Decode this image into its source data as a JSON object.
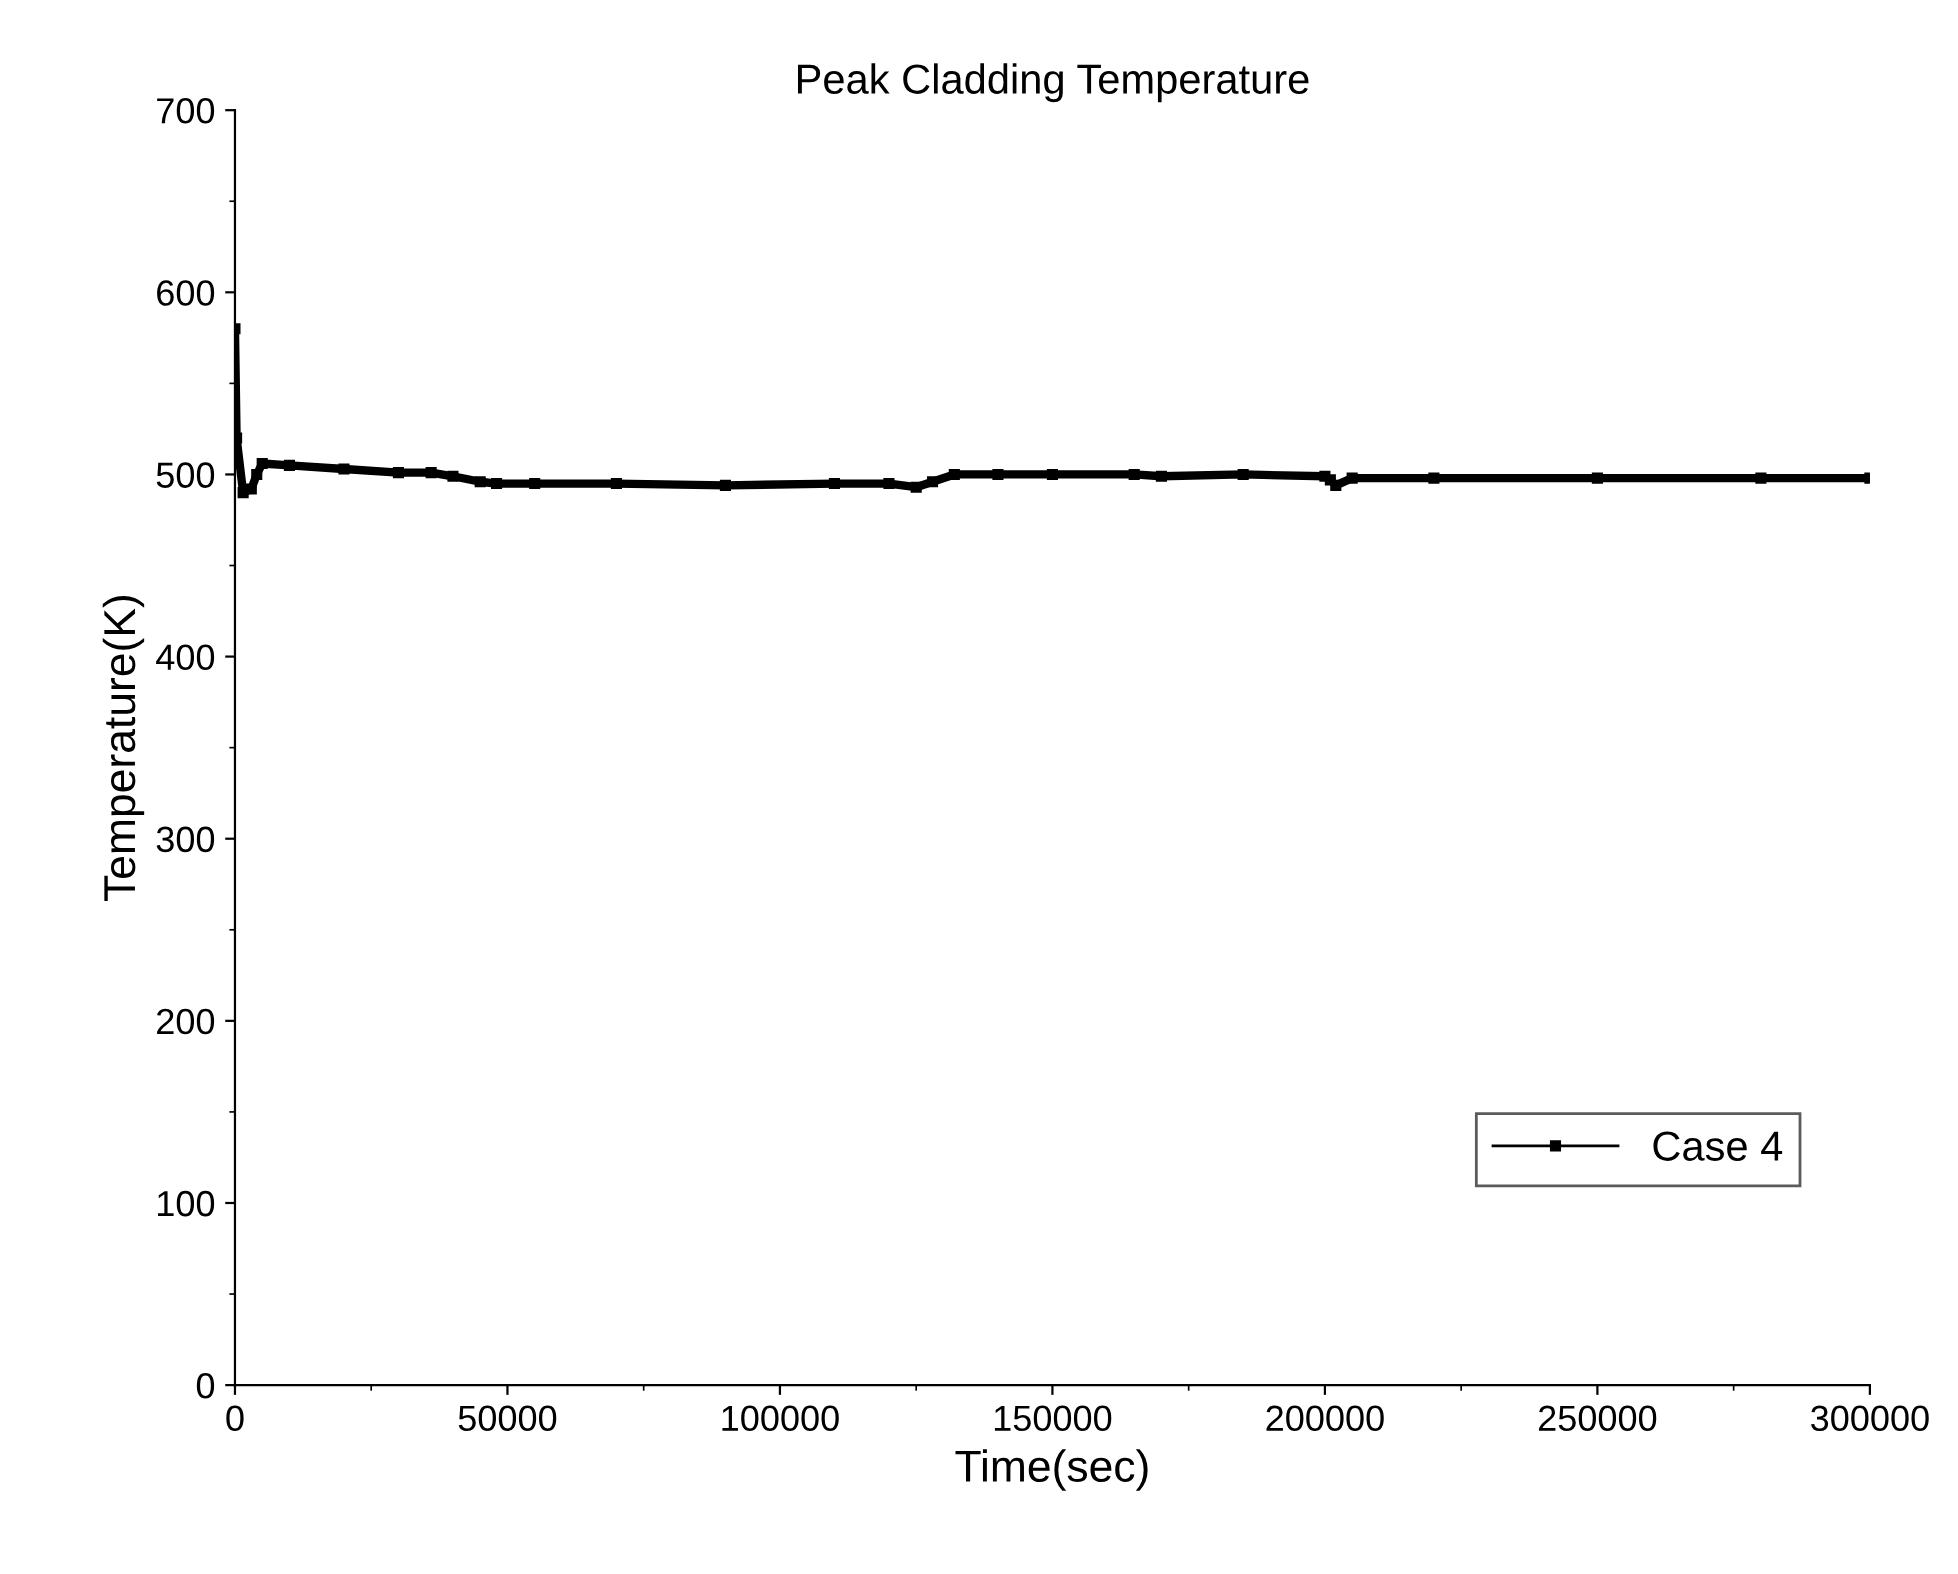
{
  "chart_data": {
    "type": "line",
    "title": "Peak Cladding Temperature",
    "xlabel": "Time(sec)",
    "ylabel": "Temperature(K)",
    "xlim": [
      0,
      300000
    ],
    "xticks": [
      0,
      50000,
      100000,
      150000,
      200000,
      250000,
      300000
    ],
    "ylim": [
      0,
      700
    ],
    "yticks": [
      0,
      100,
      200,
      300,
      400,
      500,
      600,
      700
    ],
    "grid": false,
    "legend": "bottom right",
    "marker": "square",
    "line_style": "solid",
    "series": [
      {
        "name": "Case 4",
        "color": "#000000",
        "x": [
          0,
          300,
          1500,
          3000,
          4000,
          5000,
          10000,
          20000,
          30000,
          36000,
          40000,
          45000,
          48000,
          55000,
          70000,
          90000,
          110000,
          120000,
          125000,
          128000,
          132000,
          140000,
          150000,
          165000,
          170000,
          185000,
          200000,
          201000,
          202000,
          205000,
          220000,
          250000,
          280000,
          300000
        ],
        "values": [
          580,
          520,
          490,
          492,
          500,
          506,
          505,
          503,
          501,
          501,
          499,
          496,
          495,
          495,
          495,
          494,
          495,
          495,
          493,
          496,
          500,
          500,
          500,
          500,
          499,
          500,
          499,
          497,
          494,
          498,
          498,
          498,
          498,
          498
        ]
      }
    ]
  }
}
